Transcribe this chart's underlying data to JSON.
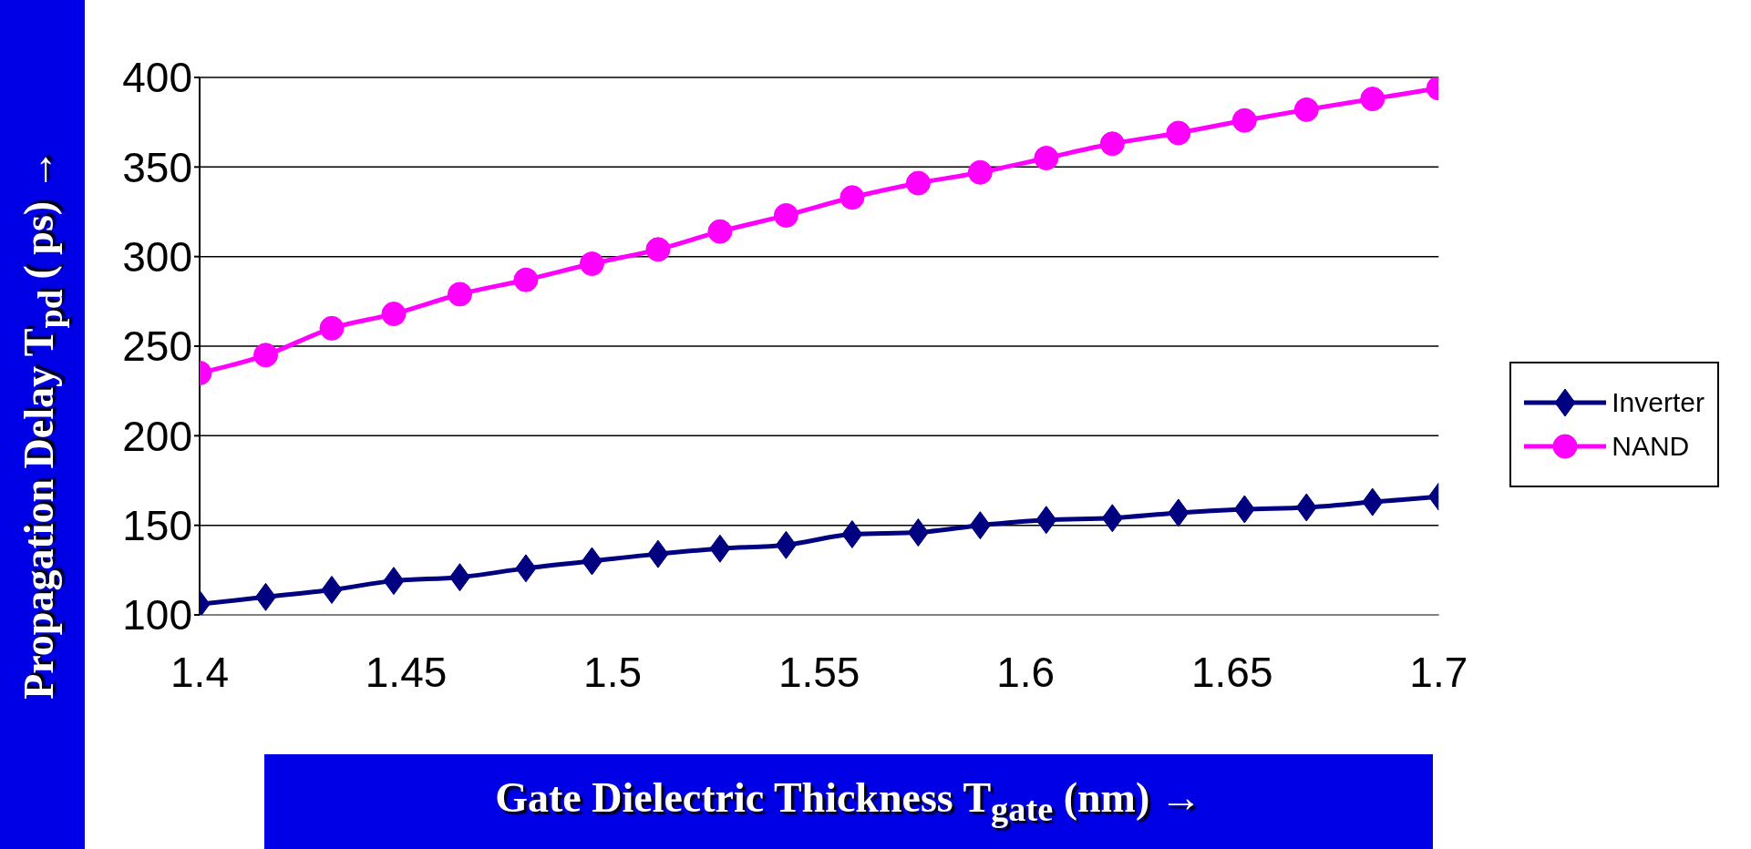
{
  "chart_data": {
    "type": "line",
    "xlabel": "Gate Dielectric Thickness T$_{gate}$ (nm) →",
    "ylabel": "Propagation Delay T$_{pd}$ ( ps) →",
    "x": [
      1.4,
      1.416,
      1.432,
      1.447,
      1.463,
      1.479,
      1.495,
      1.511,
      1.526,
      1.542,
      1.558,
      1.574,
      1.589,
      1.605,
      1.621,
      1.637,
      1.653,
      1.668,
      1.684,
      1.7
    ],
    "series": [
      {
        "name": "Inverter",
        "color": "#000080",
        "marker": "diamond",
        "values": [
          106,
          110,
          114,
          119,
          121,
          126,
          130,
          134,
          137,
          139,
          145,
          146,
          150,
          153,
          154,
          157,
          159,
          160,
          163,
          166
        ]
      },
      {
        "name": "NAND",
        "color": "#ff00ff",
        "marker": "circle",
        "values": [
          235,
          245,
          260,
          268,
          279,
          287,
          296,
          304,
          314,
          323,
          333,
          341,
          347,
          355,
          363,
          369,
          376,
          382,
          388,
          394
        ]
      }
    ],
    "xlim": [
      1.4,
      1.7
    ],
    "xticks": [
      1.4,
      1.45,
      1.5,
      1.55,
      1.6,
      1.65,
      1.7
    ],
    "ylim": [
      100,
      400
    ],
    "yticks": [
      100,
      150,
      200,
      250,
      300,
      350,
      400
    ],
    "grid": "y",
    "legend": "right",
    "line_style": "solid"
  }
}
